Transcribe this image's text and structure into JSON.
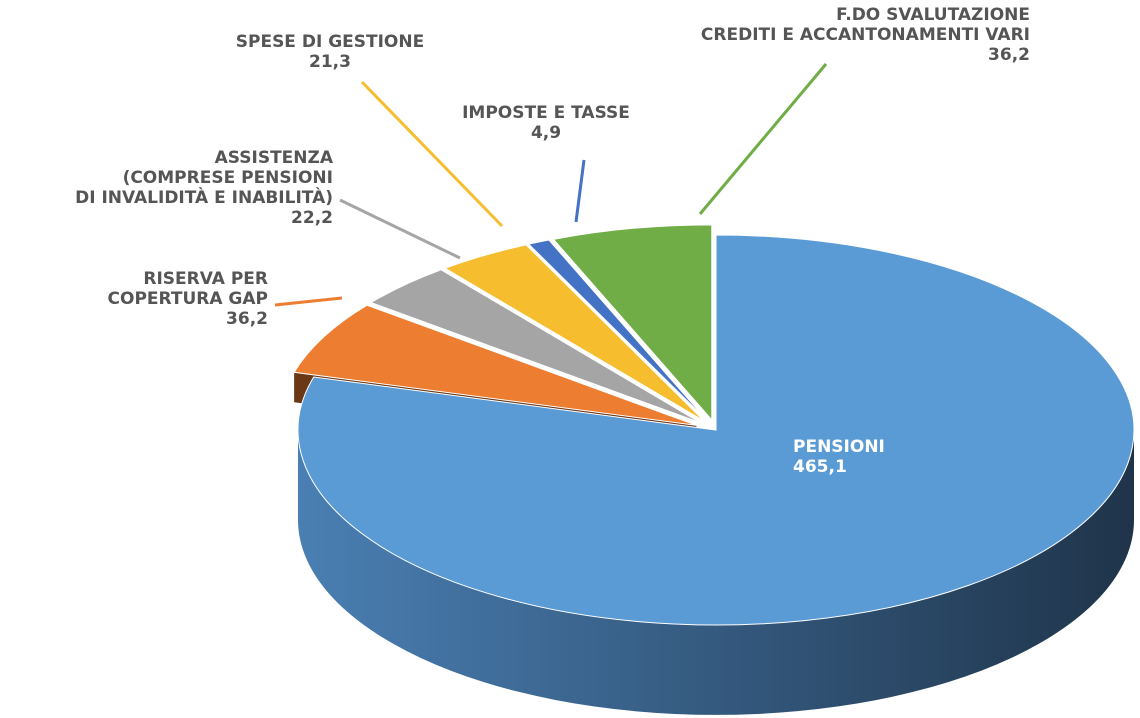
{
  "chart_data": {
    "type": "pie",
    "categories": [
      "PENSIONI",
      "RISERVA PER\nCOPERTURA GAP",
      "ASSISTENZA\n(COMPRESE PENSIONI\nDI INVALIDITÀ E INABILITÀ)",
      "SPESE DI GESTIONE",
      "IMPOSTE E TASSE",
      "F.DO SVALUTAZIONE\nCREDITI E ACCANTONAMENTI VARI"
    ],
    "values": [
      465.1,
      36.2,
      22.2,
      21.3,
      4.9,
      36.2
    ],
    "value_labels": [
      "465,1",
      "36,2",
      "22,2",
      "21,3",
      "4,9",
      "36,2"
    ],
    "colors": [
      "#5b9bd5",
      "#ed7d31",
      "#a5a5a5",
      "#f6bd2e",
      "#4472c4",
      "#70ad47"
    ]
  }
}
